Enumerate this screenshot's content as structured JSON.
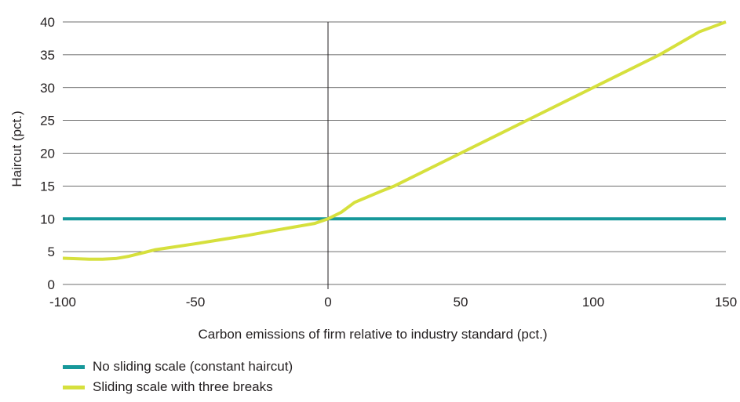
{
  "chart_data": {
    "type": "line",
    "xlabel": "Carbon emissions of firm relative to industry standard (pct.)",
    "ylabel": "Haircut (pct.)",
    "xlim": [
      -100,
      150
    ],
    "ylim": [
      0,
      40
    ],
    "x_ticks": [
      "-100",
      "-50",
      "0",
      "50",
      "100",
      "150"
    ],
    "y_ticks": [
      "0",
      "5",
      "10",
      "15",
      "20",
      "25",
      "30",
      "35",
      "40"
    ],
    "grid": "horizontal",
    "legend_position": "bottom-left",
    "series": [
      {
        "name": "No sliding scale (constant haircut)",
        "color": "#17989a",
        "x": [
          -100,
          150
        ],
        "y": [
          10,
          10
        ]
      },
      {
        "name": "Sliding scale with three breaks",
        "color": "#d6e03d",
        "x": [
          -100,
          -90,
          -85,
          -80,
          -75,
          -70,
          -65,
          -60,
          -50,
          -40,
          -30,
          -20,
          -10,
          -5,
          0,
          5,
          10,
          20,
          25,
          50,
          75,
          100,
          125,
          140,
          150
        ],
        "y": [
          4.0,
          3.85,
          3.85,
          3.95,
          4.3,
          4.8,
          5.3,
          5.6,
          6.2,
          6.85,
          7.5,
          8.25,
          8.95,
          9.3,
          10.0,
          11.0,
          12.5,
          14.2,
          15.0,
          20.0,
          25.0,
          30.0,
          35.0,
          38.5,
          40.0
        ]
      }
    ]
  }
}
